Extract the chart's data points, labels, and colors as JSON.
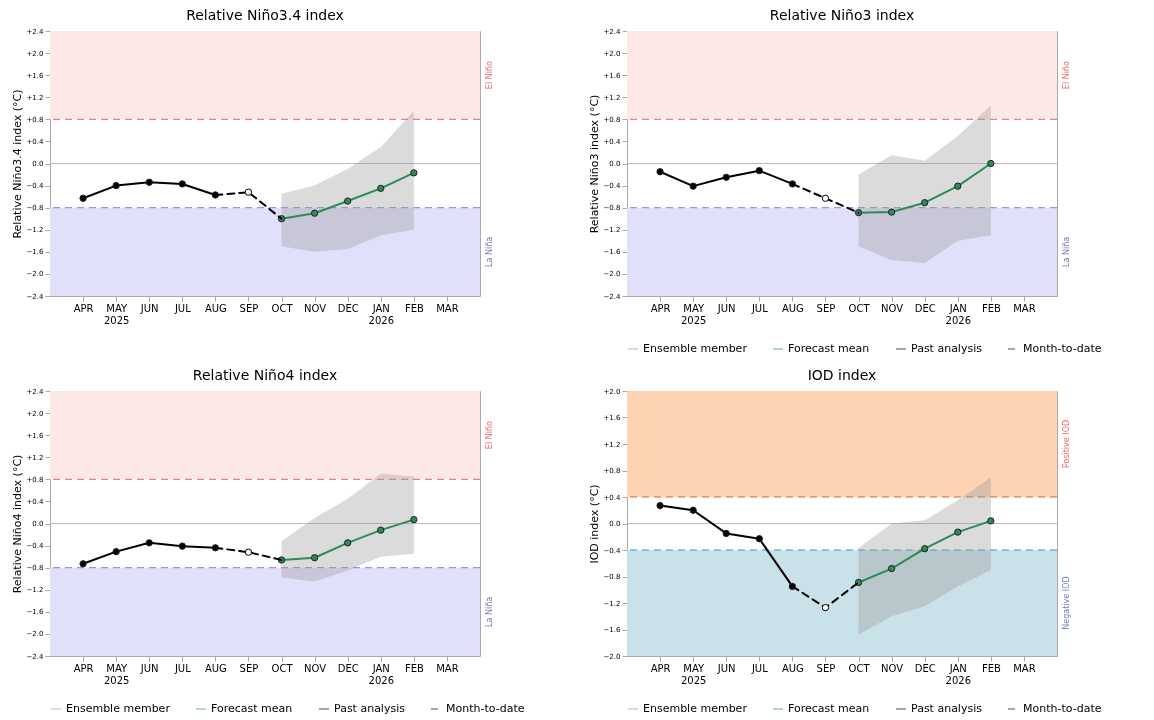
{
  "chart_data": [
    {
      "type": "line",
      "title": "Relative Niño3.4 index",
      "ylabel": "Relative Niño3.4 index (°C)",
      "categories": [
        "APR",
        "MAY\n2025",
        "JUN",
        "JUL",
        "AUG",
        "SEP",
        "OCT",
        "NOV",
        "DEC",
        "JAN\n2026",
        "FEB",
        "MAR"
      ],
      "ylim": [
        -2.4,
        2.4
      ],
      "yticks": [
        {
          "value": -2.4,
          "label": "−2.4"
        },
        {
          "value": -2.0,
          "label": "−2.0"
        },
        {
          "value": -1.6,
          "label": "−1.6"
        },
        {
          "value": -1.2,
          "label": "−1.2"
        },
        {
          "value": -0.8,
          "label": "−0.8"
        },
        {
          "value": -0.4,
          "label": "−0.4"
        },
        {
          "value": 0,
          "label": "0.0"
        },
        {
          "value": 0.4,
          "label": "+0.4"
        },
        {
          "value": 0.8,
          "label": "+0.8"
        },
        {
          "value": 1.2,
          "label": "+1.2"
        },
        {
          "value": 1.6,
          "label": "+1.6"
        },
        {
          "value": 2.0,
          "label": "+2.0"
        },
        {
          "value": 2.4,
          "label": "+2.4"
        }
      ],
      "grid": false,
      "legend": false,
      "bands": [
        {
          "axis": "y",
          "from": 0.8,
          "to": 2.4,
          "label": "El Niño",
          "color": "#fde8e8"
        },
        {
          "axis": "y",
          "from": -2.4,
          "to": -0.8,
          "label": "La Niña",
          "color": "#e0e0fb"
        }
      ],
      "ref_lines": [
        {
          "axis": "y",
          "value": 0.8,
          "color": "#f08080",
          "line_style": "dashed"
        },
        {
          "axis": "y",
          "value": -0.8,
          "color": "#9a9ad8",
          "line_style": "dashed"
        },
        {
          "axis": "y",
          "value": 0,
          "color": "#bbbbbb",
          "line_style": "solid"
        }
      ],
      "series": [
        {
          "color": "#999999",
          "values": [
            null,
            null,
            null,
            null,
            null,
            null,
            null,
            null,
            null,
            null,
            null,
            null
          ],
          "lower": [
            null,
            null,
            null,
            null,
            null,
            null,
            -1.5,
            -1.6,
            -1.55,
            -1.3,
            -1.2,
            null
          ],
          "upper": [
            null,
            null,
            null,
            null,
            null,
            null,
            -0.55,
            -0.4,
            -0.1,
            0.3,
            0.95,
            null
          ]
        },
        {
          "color": "#2e8b57",
          "marker": "circle",
          "line_style": "solid",
          "values": [
            null,
            null,
            null,
            null,
            null,
            null,
            -1.0,
            -0.9,
            -0.68,
            -0.45,
            -0.17,
            null
          ]
        },
        {
          "color": "#000000",
          "marker": "circle",
          "line_style": "solid",
          "values": [
            -0.63,
            -0.4,
            -0.34,
            -0.37,
            -0.57,
            null,
            null,
            null,
            null,
            null,
            null,
            null
          ]
        },
        {
          "color": "#000000",
          "marker": "circle",
          "line_style": "dashed",
          "values": [
            null,
            null,
            null,
            null,
            -0.57,
            -0.52,
            -1.0,
            null,
            null,
            null,
            null,
            null
          ]
        }
      ]
    },
    {
      "type": "line",
      "title": "Relative Niño3 index",
      "ylabel": "Relative Niño3 index (°C)",
      "categories": [
        "APR",
        "MAY\n2025",
        "JUN",
        "JUL",
        "AUG",
        "SEP",
        "OCT",
        "NOV",
        "DEC",
        "JAN\n2026",
        "FEB",
        "MAR"
      ],
      "ylim": [
        -2.4,
        2.4
      ],
      "yticks": [
        {
          "value": -2.4,
          "label": "−2.4"
        },
        {
          "value": -2.0,
          "label": "−2.0"
        },
        {
          "value": -1.6,
          "label": "−1.6"
        },
        {
          "value": -1.2,
          "label": "−1.2"
        },
        {
          "value": -0.8,
          "label": "−0.8"
        },
        {
          "value": -0.4,
          "label": "−0.4"
        },
        {
          "value": 0,
          "label": "0.0"
        },
        {
          "value": 0.4,
          "label": "+0.4"
        },
        {
          "value": 0.8,
          "label": "+0.8"
        },
        {
          "value": 1.2,
          "label": "+1.2"
        },
        {
          "value": 1.6,
          "label": "+1.6"
        },
        {
          "value": 2.0,
          "label": "+2.0"
        },
        {
          "value": 2.4,
          "label": "+2.4"
        }
      ],
      "grid": false,
      "legend": "bottom",
      "bands": [
        {
          "axis": "y",
          "from": 0.8,
          "to": 2.4,
          "label": "El Niño",
          "color": "#fde8e8"
        },
        {
          "axis": "y",
          "from": -2.4,
          "to": -0.8,
          "label": "La Niña",
          "color": "#e0e0fb"
        }
      ],
      "ref_lines": [
        {
          "axis": "y",
          "value": 0.8,
          "color": "#f08080",
          "line_style": "dashed"
        },
        {
          "axis": "y",
          "value": -0.8,
          "color": "#9a9ad8",
          "line_style": "dashed"
        },
        {
          "axis": "y",
          "value": 0,
          "color": "#bbbbbb",
          "line_style": "solid"
        }
      ],
      "series": [
        {
          "name": "Ensemble member",
          "color": "#999999",
          "values": [
            null,
            null,
            null,
            null,
            null,
            null,
            null,
            null,
            null,
            null,
            null,
            null
          ],
          "lower": [
            null,
            null,
            null,
            null,
            null,
            null,
            -1.5,
            -1.75,
            -1.8,
            -1.4,
            -1.3,
            null
          ],
          "upper": [
            null,
            null,
            null,
            null,
            null,
            null,
            -0.2,
            0.15,
            0.05,
            0.5,
            1.05,
            null
          ]
        },
        {
          "name": "Forecast mean",
          "color": "#2e8b57",
          "marker": "circle",
          "line_style": "solid",
          "values": [
            null,
            null,
            null,
            null,
            null,
            null,
            -0.89,
            -0.88,
            -0.71,
            -0.41,
            0.0,
            null
          ]
        },
        {
          "name": "Past analysis",
          "color": "#000000",
          "marker": "circle",
          "line_style": "solid",
          "values": [
            -0.15,
            -0.41,
            -0.25,
            -0.13,
            -0.37,
            null,
            null,
            null,
            null,
            null,
            null,
            null
          ]
        },
        {
          "name": "Month-to-date",
          "color": "#000000",
          "marker": "circle",
          "line_style": "dashed",
          "values": [
            null,
            null,
            null,
            null,
            -0.37,
            -0.63,
            -0.89,
            null,
            null,
            null,
            null,
            null
          ]
        }
      ]
    },
    {
      "type": "line",
      "title": "Relative Niño4 index",
      "ylabel": "Relative Niño4 index (°C)",
      "categories": [
        "APR",
        "MAY\n2025",
        "JUN",
        "JUL",
        "AUG",
        "SEP",
        "OCT",
        "NOV",
        "DEC",
        "JAN\n2026",
        "FEB",
        "MAR"
      ],
      "ylim": [
        -2.4,
        2.4
      ],
      "yticks": [
        {
          "value": -2.4,
          "label": "−2.4"
        },
        {
          "value": -2.0,
          "label": "−2.0"
        },
        {
          "value": -1.6,
          "label": "−1.6"
        },
        {
          "value": -1.2,
          "label": "−1.2"
        },
        {
          "value": -0.8,
          "label": "−0.8"
        },
        {
          "value": -0.4,
          "label": "−0.4"
        },
        {
          "value": 0,
          "label": "0.0"
        },
        {
          "value": 0.4,
          "label": "+0.4"
        },
        {
          "value": 0.8,
          "label": "+0.8"
        },
        {
          "value": 1.2,
          "label": "+1.2"
        },
        {
          "value": 1.6,
          "label": "+1.6"
        },
        {
          "value": 2.0,
          "label": "+2.0"
        },
        {
          "value": 2.4,
          "label": "+2.4"
        }
      ],
      "grid": false,
      "legend": "bottom",
      "bands": [
        {
          "axis": "y",
          "from": 0.8,
          "to": 2.4,
          "label": "El Niño",
          "color": "#fde8e8"
        },
        {
          "axis": "y",
          "from": -2.4,
          "to": -0.8,
          "label": "La Niña",
          "color": "#e0e0fb"
        }
      ],
      "ref_lines": [
        {
          "axis": "y",
          "value": 0.8,
          "color": "#f08080",
          "line_style": "dashed"
        },
        {
          "axis": "y",
          "value": -0.8,
          "color": "#9a9ad8",
          "line_style": "dashed"
        },
        {
          "axis": "y",
          "value": 0,
          "color": "#bbbbbb",
          "line_style": "solid"
        }
      ],
      "series": [
        {
          "name": "Ensemble member",
          "color": "#999999",
          "values": [
            null,
            null,
            null,
            null,
            null,
            null,
            null,
            null,
            null,
            null,
            null,
            null
          ],
          "lower": [
            null,
            null,
            null,
            null,
            null,
            null,
            -0.98,
            -1.05,
            -0.85,
            -0.6,
            -0.55,
            null
          ],
          "upper": [
            null,
            null,
            null,
            null,
            null,
            null,
            -0.32,
            0.1,
            0.45,
            0.9,
            0.85,
            null
          ]
        },
        {
          "name": "Forecast mean",
          "color": "#2e8b57",
          "marker": "circle",
          "line_style": "solid",
          "values": [
            null,
            null,
            null,
            null,
            null,
            null,
            -0.66,
            -0.62,
            -0.35,
            -0.12,
            0.07,
            null
          ]
        },
        {
          "name": "Past analysis",
          "color": "#000000",
          "marker": "circle",
          "line_style": "solid",
          "values": [
            -0.73,
            -0.51,
            -0.35,
            -0.41,
            -0.44,
            null,
            null,
            null,
            null,
            null,
            null,
            null
          ]
        },
        {
          "name": "Month-to-date",
          "color": "#000000",
          "marker": "circle",
          "line_style": "dashed",
          "values": [
            null,
            null,
            null,
            null,
            -0.44,
            -0.52,
            -0.66,
            null,
            null,
            null,
            null,
            null
          ]
        }
      ]
    },
    {
      "type": "line",
      "title": "IOD index",
      "ylabel": "IOD index (°C)",
      "categories": [
        "APR",
        "MAY\n2025",
        "JUN",
        "JUL",
        "AUG",
        "SEP",
        "OCT",
        "NOV",
        "DEC",
        "JAN\n2026",
        "FEB",
        "MAR"
      ],
      "ylim": [
        -2.0,
        2.0
      ],
      "yticks": [
        {
          "value": -2.0,
          "label": "−2.0"
        },
        {
          "value": -1.6,
          "label": "−1.6"
        },
        {
          "value": -1.2,
          "label": "−1.2"
        },
        {
          "value": -0.8,
          "label": "−0.8"
        },
        {
          "value": -0.4,
          "label": "−0.4"
        },
        {
          "value": 0,
          "label": "0.0"
        },
        {
          "value": 0.4,
          "label": "+0.4"
        },
        {
          "value": 0.8,
          "label": "+0.8"
        },
        {
          "value": 1.2,
          "label": "+1.2"
        },
        {
          "value": 1.6,
          "label": "+1.6"
        },
        {
          "value": 2.0,
          "label": "+2.0"
        }
      ],
      "grid": false,
      "legend": "bottom",
      "bands": [
        {
          "axis": "y",
          "from": 0.4,
          "to": 2.0,
          "label": "Positive IOD",
          "color": "#fdd3b2"
        },
        {
          "axis": "y",
          "from": -2.0,
          "to": -0.4,
          "label": "Negative IOD",
          "color": "#c9e1e8"
        }
      ],
      "ref_lines": [
        {
          "axis": "y",
          "value": 0.4,
          "color": "#d2691e",
          "line_style": "dashed"
        },
        {
          "axis": "y",
          "value": -0.4,
          "color": "#3399bb",
          "line_style": "dashed"
        },
        {
          "axis": "y",
          "value": 0,
          "color": "#bbbbbb",
          "line_style": "solid"
        }
      ],
      "series": [
        {
          "name": "Ensemble member",
          "color": "#999999",
          "values": [
            null,
            null,
            null,
            null,
            null,
            null,
            null,
            null,
            null,
            null,
            null,
            null
          ],
          "lower": [
            null,
            null,
            null,
            null,
            null,
            null,
            -1.68,
            -1.4,
            -1.25,
            -0.95,
            -0.7,
            null
          ],
          "upper": [
            null,
            null,
            null,
            null,
            null,
            null,
            -0.37,
            0.0,
            0.05,
            0.35,
            0.7,
            null
          ]
        },
        {
          "name": "Forecast mean",
          "color": "#2e8b57",
          "marker": "circle",
          "line_style": "solid",
          "values": [
            null,
            null,
            null,
            null,
            null,
            null,
            -0.89,
            -0.68,
            -0.38,
            -0.13,
            0.04,
            null
          ]
        },
        {
          "name": "Past analysis",
          "color": "#000000",
          "marker": "circle",
          "line_style": "solid",
          "values": [
            0.27,
            0.2,
            -0.15,
            -0.23,
            -0.95,
            null,
            null,
            null,
            null,
            null,
            null,
            null
          ]
        },
        {
          "name": "Month-to-date",
          "color": "#000000",
          "marker": "circle",
          "line_style": "dashed",
          "values": [
            null,
            null,
            null,
            null,
            -0.95,
            -1.27,
            -0.89,
            null,
            null,
            null,
            null,
            null
          ]
        }
      ]
    }
  ]
}
